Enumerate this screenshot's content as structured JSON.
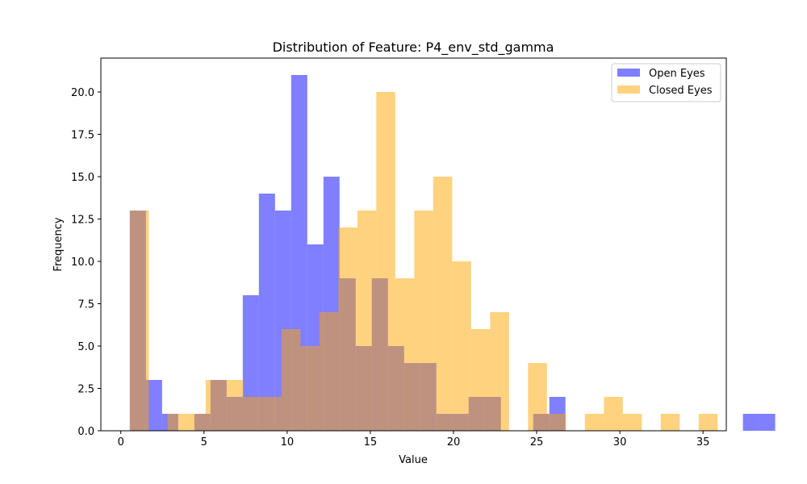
{
  "chart_data": {
    "type": "bar",
    "title": "Distribution of Feature: P4_env_std_gamma",
    "xlabel": "Value",
    "ylabel": "Frequency",
    "xlim": [
      -1.2,
      36.4
    ],
    "ylim": [
      0,
      22.0
    ],
    "xticks": [
      0,
      5,
      10,
      15,
      20,
      25,
      30,
      35
    ],
    "yticks": [
      0.0,
      2.5,
      5.0,
      7.5,
      10.0,
      12.5,
      15.0,
      17.5,
      20.0
    ],
    "legend_position": "top-right",
    "series": [
      {
        "name": "Open Eyes",
        "color": "#0000ff",
        "opacity": 0.5,
        "bin_start": 0.54,
        "bin_width": 0.97,
        "values": [
          13,
          3,
          1,
          0,
          1,
          3,
          2,
          8,
          14,
          13,
          21,
          11,
          15,
          9,
          5,
          9,
          5,
          4,
          4,
          1,
          1,
          2,
          2,
          0,
          0,
          1,
          2,
          0,
          0,
          0,
          0,
          0,
          0,
          0,
          0,
          0,
          0,
          0,
          1,
          1,
          0
        ]
      },
      {
        "name": "Closed Eyes",
        "color": "#ffa500",
        "opacity": 0.5,
        "bin_start": 0.54,
        "bin_width": 1.14,
        "values": [
          13,
          0,
          1,
          1,
          3,
          3,
          2,
          2,
          6,
          5,
          7,
          12,
          13,
          20,
          9,
          13,
          15,
          10,
          6,
          7,
          0,
          4,
          1,
          0,
          1,
          2,
          1,
          0,
          1,
          0,
          1
        ]
      }
    ]
  }
}
